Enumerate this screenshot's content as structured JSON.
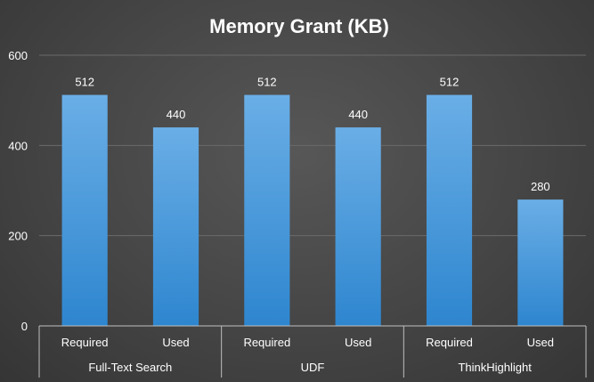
{
  "chart_data": {
    "type": "bar",
    "title": "Memory Grant (KB)",
    "xlabel": "",
    "ylabel": "",
    "ylim": [
      0,
      600
    ],
    "yticks": [
      0,
      200,
      400,
      600
    ],
    "grid": true,
    "groups": [
      {
        "label": "Full-Text Search",
        "bars": [
          {
            "label": "Required",
            "value": 512
          },
          {
            "label": "Used",
            "value": 440
          }
        ]
      },
      {
        "label": "UDF",
        "bars": [
          {
            "label": "Required",
            "value": 512
          },
          {
            "label": "Used",
            "value": 440
          }
        ]
      },
      {
        "label": "ThinkHighlight",
        "bars": [
          {
            "label": "Required",
            "value": 512
          },
          {
            "label": "Used",
            "value": 280
          }
        ]
      }
    ],
    "colors": {
      "bar_top": "#6aaee6",
      "bar_bottom": "#2e86cf",
      "text": "#ffffff",
      "grid": "#6a6a6a",
      "axis": "#bfbfbf"
    }
  }
}
